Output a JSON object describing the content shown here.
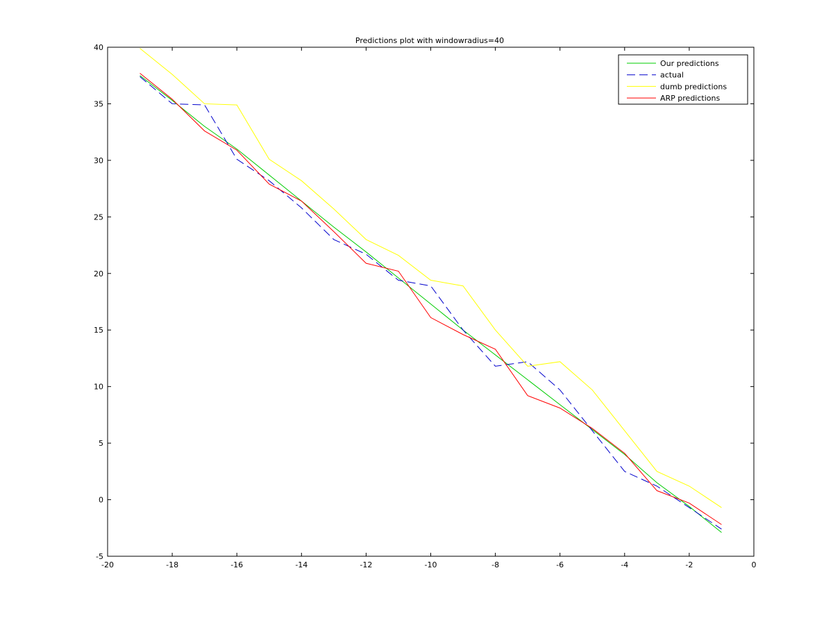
{
  "chart_data": {
    "type": "line",
    "title": "Predictions plot with windowradius=40",
    "xlabel": "",
    "ylabel": "",
    "xlim": [
      -20,
      0
    ],
    "ylim": [
      -5,
      40
    ],
    "xticks": [
      -20,
      -18,
      -16,
      -14,
      -12,
      -10,
      -8,
      -6,
      -4,
      -2,
      0
    ],
    "yticks": [
      -5,
      0,
      5,
      10,
      15,
      20,
      25,
      30,
      35,
      40
    ],
    "grid": false,
    "legend_position": "top-right",
    "x": [
      -19,
      -18,
      -17,
      -16,
      -15,
      -14,
      -13,
      -12,
      -11,
      -10,
      -9,
      -8,
      -7,
      -6,
      -5,
      -4,
      -3,
      -2,
      -1
    ],
    "series": [
      {
        "name": "Our predictions",
        "color": "#00cc00",
        "dash": "solid",
        "values": [
          37.5,
          35.3,
          33.0,
          31.0,
          28.7,
          26.4,
          24.1,
          21.9,
          19.6,
          17.3,
          15.0,
          12.8,
          10.6,
          8.4,
          6.2,
          4.0,
          1.5,
          -0.6,
          -2.9
        ]
      },
      {
        "name": "actual",
        "color": "#0000cc",
        "dash": "dashed",
        "values": [
          37.4,
          35.0,
          34.9,
          30.1,
          28.2,
          25.8,
          23.0,
          21.7,
          19.4,
          18.9,
          15.0,
          11.8,
          12.2,
          9.7,
          6.1,
          2.5,
          1.2,
          -0.7,
          -2.6
        ]
      },
      {
        "name": "dumb predictions",
        "color": "#ffff00",
        "dash": "solid",
        "values": [
          39.9,
          37.6,
          35.0,
          34.9,
          30.1,
          28.2,
          25.7,
          23.0,
          21.6,
          19.4,
          18.9,
          15.0,
          11.8,
          12.2,
          9.7,
          6.1,
          2.5,
          1.2,
          -0.7
        ]
      },
      {
        "name": "ARP predictions",
        "color": "#ff0000",
        "dash": "solid",
        "values": [
          37.7,
          35.4,
          32.6,
          30.9,
          27.9,
          26.4,
          23.7,
          20.9,
          20.2,
          16.1,
          14.6,
          13.3,
          9.2,
          8.1,
          6.3,
          4.1,
          0.8,
          -0.3,
          -2.2
        ]
      }
    ]
  }
}
